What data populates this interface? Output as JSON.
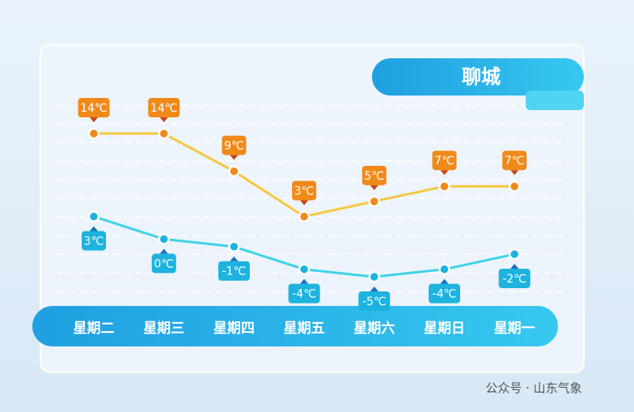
{
  "chart_data": {
    "type": "line",
    "title": "聊城",
    "categories": [
      "星期二",
      "星期三",
      "星期四",
      "星期五",
      "星期六",
      "星期日",
      "星期一"
    ],
    "series": [
      {
        "color": "#f5c842",
        "label_color": "#ef8a1a",
        "values": [
          14,
          14,
          9,
          3,
          5,
          7,
          7
        ],
        "value_labels": [
          "14℃",
          "14℃",
          "9℃",
          "3℃",
          "5℃",
          "7℃",
          "7℃"
        ]
      },
      {
        "color": "#3fd3e6",
        "label_color": "#1db3de",
        "values": [
          3,
          0,
          -1,
          -4,
          -5,
          -4,
          -2
        ],
        "value_labels": [
          "3℃",
          "0℃",
          "-1℃",
          "-4℃",
          "-5℃",
          "-4℃",
          "-2℃"
        ]
      }
    ]
  },
  "watermark": "公众号 · 山东气象"
}
